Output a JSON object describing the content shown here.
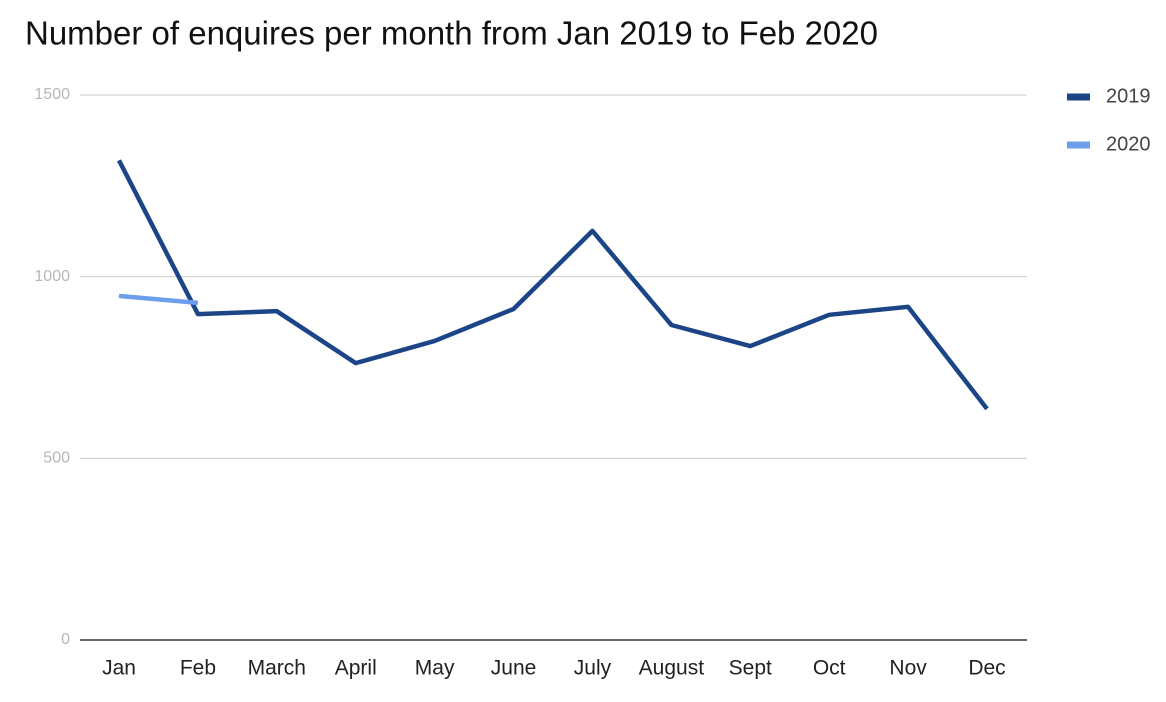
{
  "chart_data": {
    "type": "line",
    "title": "Number of enquires per month from Jan 2019 to Feb 2020",
    "categories": [
      "Jan",
      "Feb",
      "March",
      "April",
      "May",
      "June",
      "July",
      "August",
      "Sept",
      "Oct",
      "Nov",
      "Dec"
    ],
    "series": [
      {
        "name": "2019",
        "color": "#1c4587",
        "values": [
          1320,
          897,
          905,
          762,
          823,
          911,
          1126,
          867,
          809,
          895,
          917,
          636
        ]
      },
      {
        "name": "2020",
        "color": "#6d9eeb",
        "values": [
          947,
          928,
          null,
          null,
          null,
          null,
          null,
          null,
          null,
          null,
          null,
          null
        ]
      }
    ],
    "ylim": [
      0,
      1500
    ],
    "yticks": [
      0,
      500,
      1000,
      1500
    ],
    "grid": true,
    "legend": "right"
  }
}
